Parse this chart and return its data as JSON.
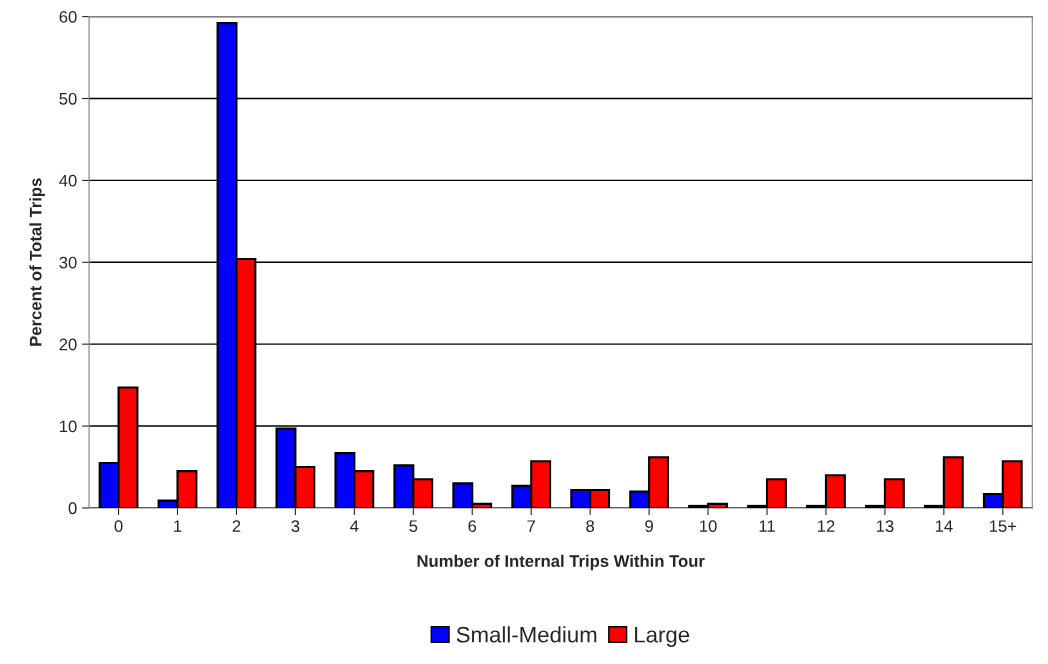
{
  "chart_data": {
    "type": "bar",
    "xlabel": "Number of Internal Trips Within Tour",
    "ylabel": "Percent of Total Trips",
    "categories": [
      "0",
      "1",
      "2",
      "3",
      "4",
      "5",
      "6",
      "7",
      "8",
      "9",
      "10",
      "11",
      "12",
      "13",
      "14",
      "15+"
    ],
    "series": [
      {
        "name": "Small-Medium",
        "color": "#0000ff",
        "values": [
          5.5,
          0.9,
          59.2,
          9.7,
          6.7,
          5.2,
          3.0,
          2.7,
          2.2,
          2.0,
          0.25,
          0.25,
          0.25,
          0.25,
          0.25,
          1.7
        ]
      },
      {
        "name": "Large",
        "color": "#ff0000",
        "values": [
          14.7,
          4.5,
          30.4,
          5.0,
          4.5,
          3.5,
          0.5,
          5.7,
          2.2,
          6.2,
          0.5,
          3.5,
          4.0,
          3.5,
          6.2,
          5.7
        ]
      }
    ],
    "ylim": [
      0,
      60
    ],
    "yticks": [
      0,
      10,
      20,
      30,
      40,
      50,
      60
    ],
    "grid": "y",
    "legend": "bottom"
  }
}
